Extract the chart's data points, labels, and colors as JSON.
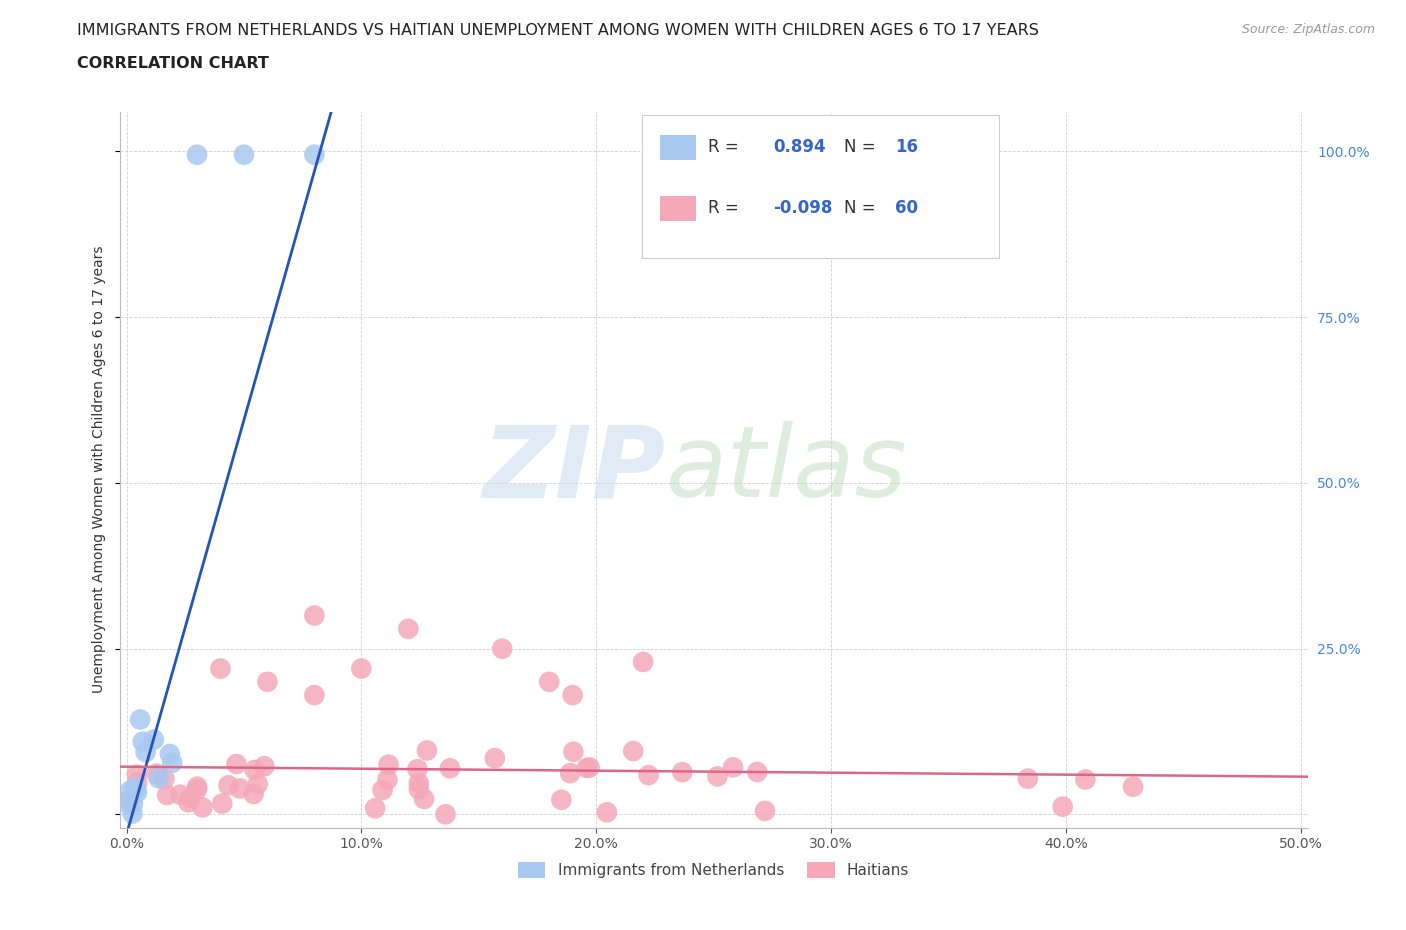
{
  "title_line1": "IMMIGRANTS FROM NETHERLANDS VS HAITIAN UNEMPLOYMENT AMONG WOMEN WITH CHILDREN AGES 6 TO 17 YEARS",
  "title_line2": "CORRELATION CHART",
  "source": "Source: ZipAtlas.com",
  "ylabel": "Unemployment Among Women with Children Ages 6 to 17 years",
  "xlim": [
    -0.003,
    0.503
  ],
  "ylim": [
    -0.02,
    1.06
  ],
  "xticks": [
    0.0,
    0.1,
    0.2,
    0.3,
    0.4,
    0.5
  ],
  "yticks": [
    0.0,
    0.25,
    0.5,
    0.75,
    1.0
  ],
  "xticklabels": [
    "0.0%",
    "10.0%",
    "20.0%",
    "30.0%",
    "40.0%",
    "50.0%"
  ],
  "yticklabels_right": [
    "",
    "25.0%",
    "50.0%",
    "75.0%",
    "100.0%"
  ],
  "background_color": "#ffffff",
  "grid_color": "#cccccc",
  "blue_color": "#A8C8F0",
  "pink_color": "#F4A8B8",
  "blue_line_color": "#2255BB",
  "pink_line_color": "#DD6688",
  "legend_label_blue": "Immigrants from Netherlands",
  "legend_label_pink": "Haitians",
  "blue_R": "0.894",
  "blue_N": "16",
  "pink_R": "-0.098",
  "pink_N": "60",
  "title_fontsize": 11.5,
  "tick_fontsize": 10,
  "legend_fontsize": 12
}
